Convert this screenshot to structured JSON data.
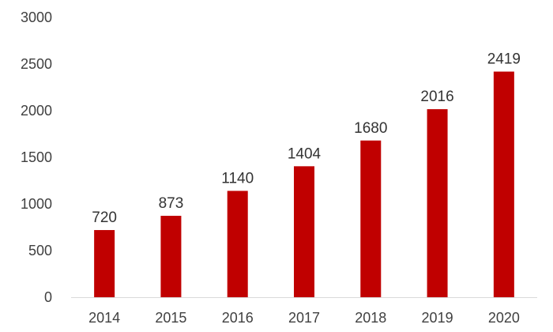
{
  "chart_data": {
    "type": "bar",
    "title": "",
    "xlabel": "",
    "ylabel": "",
    "categories": [
      "2014",
      "2015",
      "2016",
      "2017",
      "2018",
      "2019",
      "2020"
    ],
    "values": [
      720,
      873,
      1140,
      1404,
      1680,
      2016,
      2419
    ],
    "data_labels": [
      "720",
      "873",
      "1140",
      "1404",
      "1680",
      "2016",
      "2419"
    ],
    "ylim": [
      0,
      3000
    ],
    "yticks": [
      0,
      500,
      1000,
      1500,
      2000,
      2500,
      3000
    ],
    "ytick_labels": [
      "0",
      "500",
      "1000",
      "1500",
      "2000",
      "2500",
      "3000"
    ],
    "grid": false,
    "legend": "none",
    "colors": {
      "bar": "#C00000",
      "axis": "#d9d9d9",
      "text": "#404040"
    }
  }
}
